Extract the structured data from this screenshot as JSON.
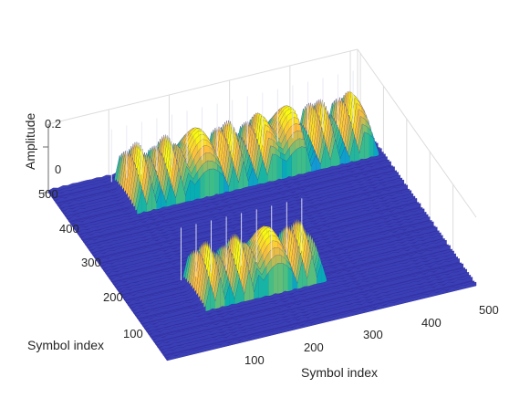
{
  "chart_data": {
    "type": "surface3d",
    "title": "",
    "xlabel": "Symbol index",
    "ylabel": "Symbol index",
    "zlabel": "Amplitude",
    "x_ticks": [
      "100",
      "200",
      "300",
      "400",
      "500"
    ],
    "y_ticks": [
      "100",
      "200",
      "300",
      "400",
      "500"
    ],
    "z_ticks": [
      "0",
      "0.2"
    ],
    "xlim": [
      0,
      512
    ],
    "ylim": [
      0,
      512
    ],
    "zlim": [
      0,
      0.3
    ],
    "colormap": "parula",
    "grid": "on",
    "peak_blocks": [
      {
        "x_range": [
          100,
          500
        ],
        "y_range": [
          400,
          500
        ],
        "peak_amplitude": 0.22
      },
      {
        "x_range": [
          100,
          300
        ],
        "y_range": [
          100,
          200
        ],
        "peak_amplitude": 0.22
      }
    ],
    "background_amplitude": 0.02
  }
}
